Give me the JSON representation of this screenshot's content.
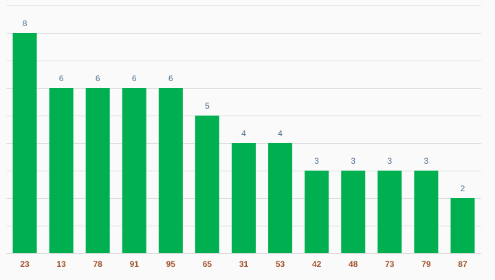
{
  "chart_data": {
    "type": "bar",
    "categories": [
      "23",
      "13",
      "78",
      "91",
      "95",
      "65",
      "31",
      "53",
      "42",
      "48",
      "73",
      "79",
      "87"
    ],
    "values": [
      8,
      6,
      6,
      6,
      6,
      5,
      4,
      4,
      3,
      3,
      3,
      3,
      2
    ],
    "color": "#00b050",
    "ylim": [
      0,
      9
    ],
    "yticks": [
      0,
      1,
      2,
      3,
      4,
      5,
      6,
      7,
      8,
      9
    ],
    "grid": true
  }
}
